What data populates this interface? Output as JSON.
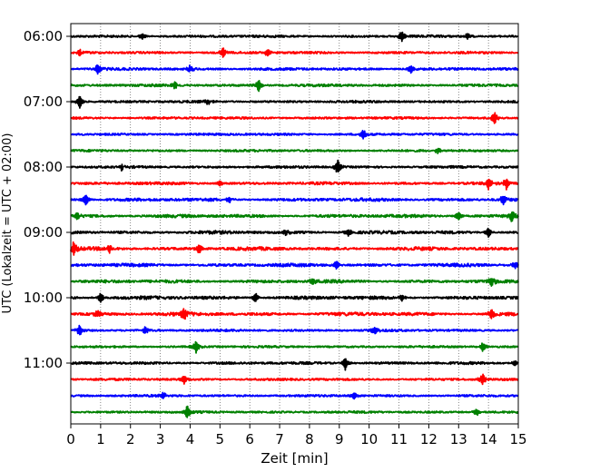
{
  "chart_data": {
    "type": "line",
    "xlabel": "Zeit  [min]",
    "ylabel": "UTC (Lokalzeit = UTC + 02:00)",
    "xlim": [
      0,
      15
    ],
    "xticks": [
      "0",
      "1",
      "2",
      "3",
      "4",
      "5",
      "6",
      "7",
      "8",
      "9",
      "10",
      "11",
      "12",
      "13",
      "14",
      "15"
    ],
    "yticks": [
      "06:00",
      "07:00",
      "08:00",
      "09:00",
      "10:00",
      "11:00"
    ],
    "grid": "vertical dotted",
    "colors": [
      "#000000",
      "#ff0000",
      "#0000ff",
      "#008000"
    ],
    "traces": [
      {
        "start": "06:00",
        "intensity": 0.35,
        "events": [
          [
            11.1,
            1.0
          ],
          [
            2.4,
            0.5
          ],
          [
            13.3,
            0.5
          ]
        ]
      },
      {
        "start": "06:15",
        "intensity": 0.35,
        "events": [
          [
            5.1,
            0.8
          ],
          [
            6.6,
            0.6
          ],
          [
            0.3,
            0.4
          ]
        ]
      },
      {
        "start": "06:30",
        "intensity": 0.4,
        "events": [
          [
            0.9,
            0.9
          ],
          [
            4.0,
            0.6
          ],
          [
            11.4,
            0.6
          ]
        ]
      },
      {
        "start": "06:45",
        "intensity": 0.4,
        "events": [
          [
            3.5,
            0.6
          ],
          [
            6.3,
            1.0
          ]
        ]
      },
      {
        "start": "07:00",
        "intensity": 0.35,
        "events": [
          [
            0.3,
            1.0
          ],
          [
            4.6,
            0.4
          ]
        ]
      },
      {
        "start": "07:15",
        "intensity": 0.3,
        "events": [
          [
            14.2,
            1.0
          ]
        ]
      },
      {
        "start": "07:30",
        "intensity": 0.3,
        "events": [
          [
            9.8,
            0.9
          ]
        ]
      },
      {
        "start": "07:45",
        "intensity": 0.3,
        "events": [
          [
            12.3,
            0.5
          ]
        ]
      },
      {
        "start": "08:00",
        "intensity": 0.35,
        "events": [
          [
            8.95,
            1.2
          ],
          [
            1.7,
            0.4
          ]
        ]
      },
      {
        "start": "08:15",
        "intensity": 0.45,
        "events": [
          [
            14.0,
            0.8
          ],
          [
            14.6,
            0.9
          ],
          [
            5.0,
            0.5
          ]
        ]
      },
      {
        "start": "08:30",
        "intensity": 0.6,
        "events": [
          [
            0.5,
            0.9
          ],
          [
            14.5,
            0.8
          ],
          [
            5.3,
            0.6
          ]
        ]
      },
      {
        "start": "08:45",
        "intensity": 0.6,
        "events": [
          [
            14.8,
            1.1
          ],
          [
            13.0,
            0.7
          ],
          [
            0.2,
            0.6
          ]
        ]
      },
      {
        "start": "09:00",
        "intensity": 0.6,
        "events": [
          [
            14.0,
            0.7
          ],
          [
            9.3,
            0.6
          ],
          [
            7.2,
            0.6
          ]
        ]
      },
      {
        "start": "09:15",
        "intensity": 0.65,
        "events": [
          [
            0.1,
            1.2
          ],
          [
            4.3,
            0.8
          ],
          [
            1.3,
            0.6
          ]
        ]
      },
      {
        "start": "09:30",
        "intensity": 0.6,
        "events": [
          [
            8.9,
            0.7
          ],
          [
            14.9,
            0.6
          ]
        ]
      },
      {
        "start": "09:45",
        "intensity": 0.6,
        "events": [
          [
            14.1,
            0.7
          ],
          [
            8.1,
            0.6
          ]
        ]
      },
      {
        "start": "10:00",
        "intensity": 0.65,
        "events": [
          [
            1.0,
            0.8
          ],
          [
            6.2,
            0.7
          ],
          [
            11.1,
            0.5
          ]
        ]
      },
      {
        "start": "10:15",
        "intensity": 0.7,
        "events": [
          [
            3.8,
            0.9
          ],
          [
            14.1,
            0.8
          ],
          [
            0.9,
            0.6
          ]
        ]
      },
      {
        "start": "10:30",
        "intensity": 0.35,
        "events": [
          [
            0.3,
            0.8
          ],
          [
            2.5,
            0.6
          ],
          [
            10.2,
            0.7
          ]
        ]
      },
      {
        "start": "10:45",
        "intensity": 0.25,
        "events": [
          [
            4.2,
            0.9
          ],
          [
            13.8,
            0.7
          ]
        ]
      },
      {
        "start": "11:00",
        "intensity": 0.4,
        "events": [
          [
            9.2,
            1.0
          ],
          [
            14.9,
            0.4
          ]
        ]
      },
      {
        "start": "11:15",
        "intensity": 0.3,
        "events": [
          [
            3.8,
            0.6
          ],
          [
            13.8,
            0.9
          ]
        ]
      },
      {
        "start": "11:30",
        "intensity": 0.3,
        "events": [
          [
            3.1,
            0.6
          ],
          [
            9.5,
            0.6
          ]
        ]
      },
      {
        "start": "11:45",
        "intensity": 0.3,
        "events": [
          [
            3.9,
            1.1
          ],
          [
            13.6,
            0.6
          ]
        ]
      }
    ]
  }
}
